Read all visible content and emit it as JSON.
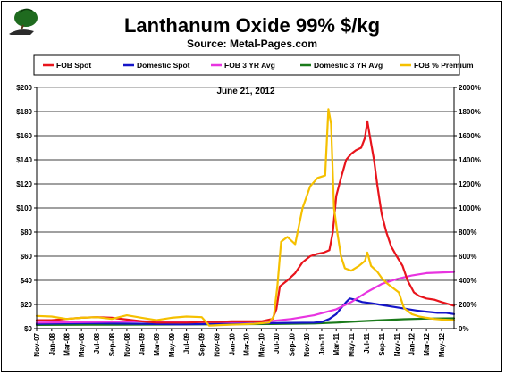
{
  "chart_data": {
    "type": "line",
    "title": "Lanthanum Oxide 99% $/kg",
    "subtitle": "Source: Metal-Pages.com",
    "annotation": "June 21, 2012",
    "y_left": {
      "ylim": [
        0,
        200
      ],
      "ticks": [
        "$0",
        "$20",
        "$40",
        "$60",
        "$80",
        "$100",
        "$120",
        "$140",
        "$160",
        "$180",
        "$200"
      ]
    },
    "y_right": {
      "ylim": [
        0,
        2000
      ],
      "ticks": [
        "0%",
        "200%",
        "400%",
        "600%",
        "800%",
        "1000%",
        "1200%",
        "1400%",
        "1600%",
        "1800%",
        "2000%"
      ]
    },
    "x_range": [
      "2007-11-01",
      "2012-06-21"
    ],
    "x_ticks": [
      "Nov-07",
      "Jan-08",
      "Mar-08",
      "May-08",
      "Jul-08",
      "Sep-08",
      "Nov-08",
      "Jan-09",
      "Mar-09",
      "May-09",
      "Jul-09",
      "Sep-09",
      "Nov-09",
      "Jan-10",
      "Mar-10",
      "May-10",
      "Jul-10",
      "Sep-10",
      "Nov-10",
      "Jan-11",
      "Mar-11",
      "May-11",
      "Jul-11",
      "Sep-11",
      "Nov-11",
      "Jan-12",
      "Mar-12",
      "May-12"
    ],
    "grid": "horizontal",
    "legend_placement": "top",
    "series": [
      {
        "name": "FOB Spot",
        "color": "#e8141c",
        "axis": "left",
        "points": [
          [
            "2007-11-01",
            7
          ],
          [
            "2008-01-01",
            7
          ],
          [
            "2008-03-01",
            8
          ],
          [
            "2008-05-01",
            9
          ],
          [
            "2008-07-01",
            9.5
          ],
          [
            "2008-09-01",
            9
          ],
          [
            "2008-11-01",
            7.5
          ],
          [
            "2009-01-01",
            6
          ],
          [
            "2009-03-01",
            5
          ],
          [
            "2009-05-01",
            5
          ],
          [
            "2009-07-01",
            5
          ],
          [
            "2009-09-01",
            5.5
          ],
          [
            "2009-11-01",
            5.5
          ],
          [
            "2010-01-01",
            6
          ],
          [
            "2010-03-01",
            6
          ],
          [
            "2010-05-01",
            6
          ],
          [
            "2010-06-15",
            8
          ],
          [
            "2010-07-01",
            16
          ],
          [
            "2010-07-15",
            35
          ],
          [
            "2010-08-15",
            40
          ],
          [
            "2010-09-15",
            46
          ],
          [
            "2010-10-15",
            55
          ],
          [
            "2010-11-15",
            60
          ],
          [
            "2010-12-15",
            62
          ],
          [
            "2011-01-10",
            63
          ],
          [
            "2011-02-01",
            65
          ],
          [
            "2011-02-15",
            80
          ],
          [
            "2011-03-01",
            110
          ],
          [
            "2011-03-20",
            125
          ],
          [
            "2011-04-10",
            140
          ],
          [
            "2011-05-01",
            145
          ],
          [
            "2011-05-20",
            148
          ],
          [
            "2011-06-10",
            150
          ],
          [
            "2011-06-25",
            158
          ],
          [
            "2011-07-05",
            172
          ],
          [
            "2011-07-15",
            160
          ],
          [
            "2011-08-01",
            140
          ],
          [
            "2011-08-15",
            118
          ],
          [
            "2011-09-01",
            95
          ],
          [
            "2011-09-20",
            80
          ],
          [
            "2011-10-10",
            68
          ],
          [
            "2011-11-01",
            60
          ],
          [
            "2011-11-25",
            52
          ],
          [
            "2011-12-15",
            40
          ],
          [
            "2012-01-10",
            30
          ],
          [
            "2012-02-01",
            27
          ],
          [
            "2012-03-01",
            25
          ],
          [
            "2012-04-01",
            24
          ],
          [
            "2012-05-01",
            22
          ],
          [
            "2012-06-21",
            19
          ]
        ]
      },
      {
        "name": "Domestic Spot",
        "color": "#1414c8",
        "axis": "left",
        "points": [
          [
            "2007-11-01",
            4
          ],
          [
            "2008-06-01",
            4.5
          ],
          [
            "2009-01-01",
            4
          ],
          [
            "2009-06-01",
            3.5
          ],
          [
            "2009-12-01",
            4
          ],
          [
            "2010-06-01",
            4.5
          ],
          [
            "2010-12-01",
            5
          ],
          [
            "2011-01-01",
            5.5
          ],
          [
            "2011-02-01",
            8
          ],
          [
            "2011-03-01",
            12
          ],
          [
            "2011-03-20",
            17
          ],
          [
            "2011-04-10",
            22
          ],
          [
            "2011-04-25",
            25
          ],
          [
            "2011-05-15",
            24
          ],
          [
            "2011-06-15",
            22
          ],
          [
            "2011-07-20",
            21
          ],
          [
            "2011-08-20",
            20
          ],
          [
            "2011-09-20",
            19
          ],
          [
            "2011-10-20",
            18
          ],
          [
            "2011-11-20",
            17
          ],
          [
            "2011-12-20",
            16
          ],
          [
            "2012-01-20",
            15
          ],
          [
            "2012-03-01",
            14
          ],
          [
            "2012-04-15",
            13
          ],
          [
            "2012-05-20",
            13
          ],
          [
            "2012-06-21",
            12
          ]
        ]
      },
      {
        "name": "FOB 3 YR Avg",
        "color": "#e834e0",
        "axis": "left",
        "points": [
          [
            "2007-11-01",
            5
          ],
          [
            "2008-06-01",
            5.5
          ],
          [
            "2009-01-01",
            6
          ],
          [
            "2009-06-01",
            5.5
          ],
          [
            "2010-01-01",
            5.5
          ],
          [
            "2010-06-01",
            6
          ],
          [
            "2010-09-01",
            8
          ],
          [
            "2010-12-01",
            11
          ],
          [
            "2011-03-01",
            16
          ],
          [
            "2011-05-01",
            22
          ],
          [
            "2011-07-01",
            30
          ],
          [
            "2011-09-01",
            37
          ],
          [
            "2011-11-01",
            41
          ],
          [
            "2012-01-01",
            44
          ],
          [
            "2012-03-01",
            46
          ],
          [
            "2012-06-21",
            47
          ]
        ]
      },
      {
        "name": "Domestic 3 YR Avg",
        "color": "#1a7a1a",
        "axis": "left",
        "points": [
          [
            "2007-11-01",
            3
          ],
          [
            "2008-06-01",
            3.2
          ],
          [
            "2009-06-01",
            3.4
          ],
          [
            "2010-06-01",
            3.8
          ],
          [
            "2010-12-01",
            4.2
          ],
          [
            "2011-03-01",
            5
          ],
          [
            "2011-06-01",
            6
          ],
          [
            "2011-09-01",
            7
          ],
          [
            "2011-12-01",
            7.8
          ],
          [
            "2012-03-01",
            8.3
          ],
          [
            "2012-06-21",
            8.5
          ]
        ]
      },
      {
        "name": "FOB % Premium",
        "color": "#f5c000",
        "axis": "right",
        "points": [
          [
            "2007-11-01",
            105
          ],
          [
            "2008-01-01",
            100
          ],
          [
            "2008-03-01",
            80
          ],
          [
            "2008-05-01",
            90
          ],
          [
            "2008-07-01",
            95
          ],
          [
            "2008-09-01",
            80
          ],
          [
            "2008-11-01",
            110
          ],
          [
            "2009-01-01",
            90
          ],
          [
            "2009-03-01",
            70
          ],
          [
            "2009-05-01",
            90
          ],
          [
            "2009-07-01",
            100
          ],
          [
            "2009-09-01",
            95
          ],
          [
            "2009-10-01",
            25
          ],
          [
            "2009-12-01",
            30
          ],
          [
            "2010-02-01",
            35
          ],
          [
            "2010-04-01",
            40
          ],
          [
            "2010-06-01",
            50
          ],
          [
            "2010-06-20",
            100
          ],
          [
            "2010-07-05",
            350
          ],
          [
            "2010-07-20",
            720
          ],
          [
            "2010-08-15",
            760
          ],
          [
            "2010-09-15",
            700
          ],
          [
            "2010-10-15",
            1000
          ],
          [
            "2010-11-15",
            1180
          ],
          [
            "2010-12-15",
            1250
          ],
          [
            "2011-01-15",
            1270
          ],
          [
            "2011-01-28",
            1820
          ],
          [
            "2011-02-08",
            1700
          ],
          [
            "2011-02-20",
            1000
          ],
          [
            "2011-03-05",
            800
          ],
          [
            "2011-03-20",
            600
          ],
          [
            "2011-04-05",
            500
          ],
          [
            "2011-05-01",
            480
          ],
          [
            "2011-06-01",
            520
          ],
          [
            "2011-06-25",
            560
          ],
          [
            "2011-07-05",
            630
          ],
          [
            "2011-07-20",
            520
          ],
          [
            "2011-08-15",
            470
          ],
          [
            "2011-09-01",
            420
          ],
          [
            "2011-09-20",
            380
          ],
          [
            "2011-10-15",
            340
          ],
          [
            "2011-11-10",
            300
          ],
          [
            "2011-12-01",
            170
          ],
          [
            "2012-01-01",
            120
          ],
          [
            "2012-02-01",
            100
          ],
          [
            "2012-03-01",
            90
          ],
          [
            "2012-04-01",
            80
          ],
          [
            "2012-05-01",
            75
          ],
          [
            "2012-06-21",
            70
          ]
        ]
      }
    ]
  }
}
